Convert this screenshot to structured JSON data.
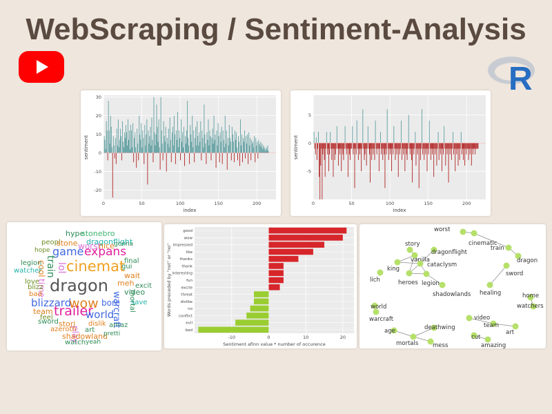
{
  "header": {
    "title": "WebScraping / Sentiment-Analysis",
    "youtube_icon": "youtube-play-icon",
    "r_logo_letter": "R",
    "brand_colors": {
      "youtube": "#ff0000",
      "r_blue": "#276dc2",
      "r_ring": "#9aa0a8"
    }
  },
  "colors": {
    "positive": "#5f9ea0",
    "negative": "#b22222",
    "bar_pos": "#d7262b",
    "bar_neg": "#9acd32",
    "node": "#b5e06a"
  },
  "chart_data": [
    {
      "type": "bar",
      "title": "",
      "xlabel": "index",
      "ylabel": "sentiment",
      "xlim": [
        0,
        225
      ],
      "ylim": [
        -25,
        31
      ],
      "x_ticks": [
        "0",
        "50",
        "100",
        "150",
        "200"
      ],
      "y_ticks": [
        "-20",
        "-10",
        "0",
        "10",
        "20",
        "30"
      ],
      "grid": true,
      "values": [
        9,
        7,
        2,
        17,
        12,
        -4,
        28,
        12,
        5,
        20,
        14,
        3,
        -24,
        9,
        4,
        -3,
        8,
        -6,
        13,
        4,
        18,
        3,
        7,
        13,
        9,
        -4,
        17,
        6,
        3,
        11,
        8,
        15,
        11,
        4,
        18,
        7,
        12,
        2,
        15,
        12,
        3,
        16,
        -5,
        8,
        11,
        3,
        -8,
        13,
        5,
        -4,
        20,
        10,
        7,
        16,
        3,
        12,
        8,
        -6,
        15,
        4,
        10,
        18,
        -17,
        12,
        5,
        9,
        14,
        4,
        19,
        7,
        -5,
        30,
        11,
        4,
        10,
        26,
        14,
        6,
        18,
        3,
        -9,
        30,
        12,
        5,
        -4,
        17,
        9,
        6,
        14,
        -10,
        8,
        5,
        13,
        3,
        19,
        7,
        -5,
        11,
        14,
        4,
        20,
        10,
        -6,
        12,
        7,
        22,
        3,
        12,
        8,
        -4,
        18,
        6,
        11,
        3,
        14,
        -7,
        9,
        5,
        12,
        28,
        8,
        4,
        -6,
        15,
        10,
        6,
        20,
        3,
        12,
        -5,
        8,
        14,
        4,
        17,
        9,
        4,
        11,
        6,
        17,
        -4,
        12,
        8,
        3,
        26,
        10,
        5,
        -6,
        11,
        7,
        18,
        4,
        12,
        9,
        -4,
        8,
        13,
        5,
        20,
        7,
        10,
        -8,
        12,
        4,
        16,
        9,
        -5,
        11,
        6,
        14,
        -6,
        12,
        7,
        3,
        20,
        5,
        12,
        -9,
        8,
        4,
        15,
        8,
        6,
        -4,
        14,
        10,
        6,
        -5,
        12,
        7,
        11,
        3,
        -4,
        9,
        6,
        -7,
        18,
        4,
        10,
        -5,
        8,
        6,
        12,
        -3,
        9,
        5,
        10,
        -6,
        11,
        4,
        8,
        -4,
        7,
        5,
        6,
        3,
        9,
        -5,
        8,
        4,
        6,
        -3,
        7,
        5,
        4,
        6,
        3,
        5,
        2,
        4,
        3,
        2,
        1,
        3,
        2,
        4,
        1
      ]
    },
    {
      "type": "bar",
      "title": "",
      "xlabel": "index",
      "ylabel": "sentiment",
      "xlim": [
        0,
        225
      ],
      "ylim": [
        -10,
        8.5
      ],
      "x_ticks": [
        "0",
        "50",
        "100",
        "150",
        "200"
      ],
      "y_ticks": [
        "-5",
        "0",
        "5"
      ],
      "grid": true,
      "values": [
        2,
        -1,
        -2,
        1,
        -3,
        -1,
        2,
        -6,
        -10,
        -4,
        -1,
        -10,
        -2,
        -1,
        -3,
        -6,
        -1,
        2,
        -2,
        -1,
        -5,
        -2,
        2,
        -1,
        -3,
        -1,
        -6,
        -1,
        -3,
        -2,
        -1,
        3,
        -1,
        -4,
        -1,
        -2,
        -1,
        -5,
        -1,
        -2,
        -3,
        -1,
        3,
        -1,
        -2,
        -1,
        -6,
        -1,
        -2,
        -3,
        -1,
        -1,
        3,
        -2,
        -1,
        -8,
        -1,
        -2,
        4,
        -1,
        -3,
        -1,
        -2,
        -1,
        -5,
        -1,
        6,
        -1,
        -3,
        -2,
        -1,
        -4,
        -1,
        3,
        -1,
        -2,
        -7,
        -1,
        -3,
        -1,
        -2,
        -1,
        -3,
        4,
        -1,
        -2,
        -1,
        -1,
        -5,
        -1,
        2,
        -2,
        -1,
        -3,
        -1,
        -2,
        -8,
        -1,
        -2,
        6,
        -1,
        -3,
        -1,
        -2,
        -1,
        -5,
        -1,
        -2,
        3,
        -1,
        -3,
        -1,
        -2,
        -1,
        -6,
        -1,
        -2,
        -1,
        4,
        -3,
        -1,
        -2,
        -1,
        -5,
        -1,
        -2,
        -3,
        -1,
        5,
        -1,
        -2,
        -1,
        -3,
        -7,
        -1,
        -2,
        -1,
        2,
        -4,
        -1,
        -2,
        -1,
        -8,
        -1,
        -3,
        -1,
        6,
        -2,
        -1,
        -3,
        -1,
        -2,
        -1,
        -5,
        -1,
        -2,
        4,
        -1,
        -3,
        -1,
        -2,
        -1,
        -6,
        -1,
        -2,
        -1,
        -4,
        -1,
        2,
        -3,
        -1,
        -2,
        -1,
        -5,
        -1,
        -2,
        3,
        -1,
        -4,
        -1,
        -2,
        -1,
        -7,
        -1,
        -2,
        -1,
        -3,
        -1,
        2,
        -2,
        -1,
        -5,
        -1,
        -2,
        -1,
        -4,
        -1,
        -3,
        -1,
        2,
        -2,
        -1,
        -3,
        -1,
        -4,
        -1,
        -2,
        -1,
        -1,
        -3,
        -1,
        -2,
        -1,
        -4,
        -1,
        -2,
        -1,
        -1,
        -2,
        -1,
        -1,
        -1,
        -1
      ]
    },
    {
      "type": "bar",
      "orientation": "horizontal",
      "title": "",
      "xlabel": "Sentiment afinn value * number of occurence",
      "ylabel": "Words preceded by \"not\" or \"no\"",
      "xlim": [
        -20,
        23
      ],
      "x_ticks": [
        "-10",
        "0",
        "10",
        "20"
      ],
      "grid": true,
      "categories": [
        "good",
        "wow",
        "impressed",
        "like",
        "thanks",
        "thank",
        "interesting",
        "fun",
        "excite",
        "threat",
        "dislike",
        "no",
        "conflict",
        "evil",
        "bad"
      ],
      "values": [
        21,
        20,
        15,
        12,
        8,
        4,
        4,
        4,
        3,
        -4,
        -4,
        -5,
        -6,
        -9,
        -19
      ]
    }
  ],
  "wordcloud": {
    "words": [
      {
        "t": "hype",
        "c": "#2e8b57"
      },
      {
        "t": "stonebro",
        "c": "#3cb371"
      },
      {
        "t": "dragonflight",
        "c": "#20b2aa"
      },
      {
        "t": "peopl",
        "c": "#6b8e23"
      },
      {
        "t": "stone",
        "c": "#e08020"
      },
      {
        "t": "worst",
        "c": "#da70d6"
      },
      {
        "t": "nice",
        "c": "#e08020"
      },
      {
        "t": "gonna",
        "c": "#2e8b57"
      },
      {
        "t": "hope",
        "c": "#6b8e23"
      },
      {
        "t": "game",
        "c": "#4169e1"
      },
      {
        "t": "expans",
        "c": "#e0209a"
      },
      {
        "t": "legion",
        "c": "#2e8b57"
      },
      {
        "t": "cool",
        "c": "#e08020"
      },
      {
        "t": "train",
        "c": "#2e8b57"
      },
      {
        "t": "lol",
        "c": "#da70d6"
      },
      {
        "t": "cinemat",
        "c": "#f0a020"
      },
      {
        "t": "final",
        "c": "#2e8b57"
      },
      {
        "t": "gui",
        "c": "#2e8b57"
      },
      {
        "t": "watcher",
        "c": "#20b2aa"
      },
      {
        "t": "wait",
        "c": "#e08020"
      },
      {
        "t": "love",
        "c": "#6b8e23"
      },
      {
        "t": "time",
        "c": "#da70d6"
      },
      {
        "t": "dragon",
        "c": "#555555"
      },
      {
        "t": "meh",
        "c": "#e08020"
      },
      {
        "t": "excit",
        "c": "#2e8b57"
      },
      {
        "t": "blizz",
        "c": "#6b8e23"
      },
      {
        "t": "video",
        "c": "#2e8b57"
      },
      {
        "t": "bad",
        "c": "#e08020"
      },
      {
        "t": "warcraft",
        "c": "#4169e1"
      },
      {
        "t": "mortal",
        "c": "#2e8b57"
      },
      {
        "t": "save",
        "c": "#20b2aa"
      },
      {
        "t": "blizzard",
        "c": "#4169e1"
      },
      {
        "t": "wow",
        "c": "#e08020"
      },
      {
        "t": "bore",
        "c": "#4169e1"
      },
      {
        "t": "team",
        "c": "#e08020"
      },
      {
        "t": "trailer",
        "c": "#e0209a"
      },
      {
        "t": "feel",
        "c": "#6b8e23"
      },
      {
        "t": "world",
        "c": "#4169e1"
      },
      {
        "t": "sword",
        "c": "#2e8b57"
      },
      {
        "t": "stori",
        "c": "#e08020"
      },
      {
        "t": "play",
        "c": "#da70d6"
      },
      {
        "t": "dislik",
        "c": "#e08020"
      },
      {
        "t": "amaz",
        "c": "#2e8b57"
      },
      {
        "t": "azeroth",
        "c": "#e08020"
      },
      {
        "t": "art",
        "c": "#2e8b57"
      },
      {
        "t": "shadowland",
        "c": "#e08020"
      },
      {
        "t": "pretti",
        "c": "#2e8b57"
      },
      {
        "t": "watch",
        "c": "#2e8b57"
      },
      {
        "t": "yeah",
        "c": "#2e8b57"
      }
    ]
  },
  "network": {
    "labels": [
      "worst",
      "cinematic",
      "train",
      "dragon",
      "story",
      "vanilla",
      "dragonflight",
      "king",
      "cataclysm",
      "lich",
      "heroes",
      "legion",
      "shadowlands",
      "sword",
      "healing",
      "home",
      "watchers",
      "world",
      "warcraft",
      "video",
      "team",
      "art",
      "deathwing",
      "age",
      "mortals",
      "mess",
      "cut",
      "amazing"
    ]
  }
}
